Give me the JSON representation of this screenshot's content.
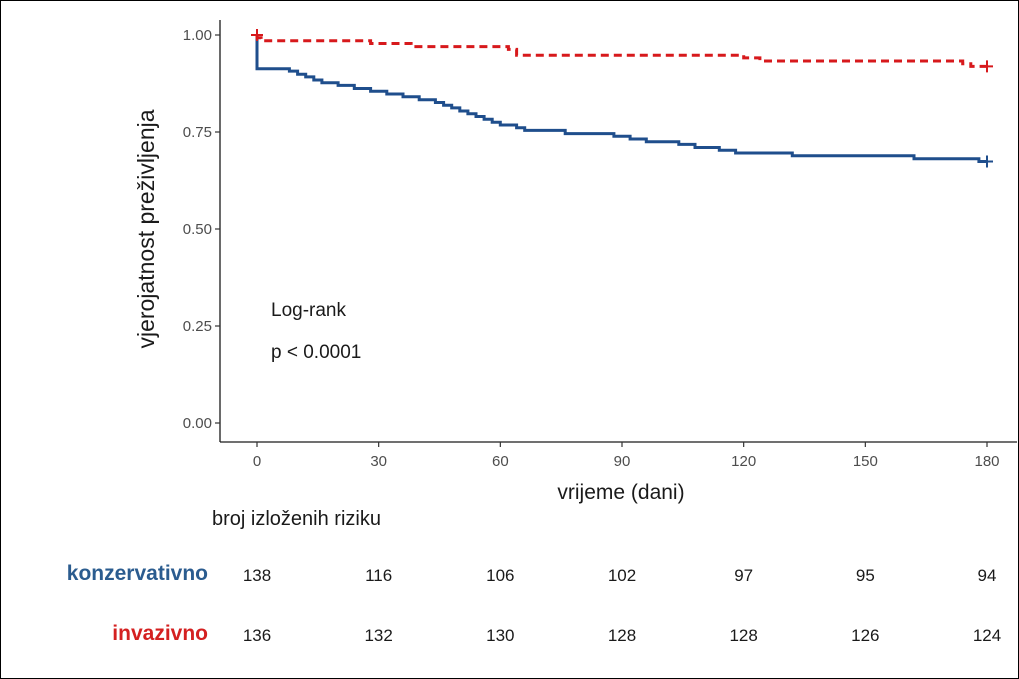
{
  "chart_data": {
    "type": "line",
    "subtype": "kaplan-meier",
    "xlabel": "vrijeme (dani)",
    "ylabel": "vjerojatnost preživljenja",
    "xlim": [
      0,
      180
    ],
    "ylim": [
      0,
      1
    ],
    "x_ticks": [
      "0",
      "30",
      "60",
      "90",
      "120",
      "150",
      "180"
    ],
    "y_ticks": [
      "0.00",
      "0.25",
      "0.50",
      "0.75",
      "1.00"
    ],
    "annotations": [
      "Log-rank",
      "p < 0.0001"
    ],
    "grid": false,
    "series": [
      {
        "name": "konzervativno",
        "color": "#1f4e8c",
        "style": "solid",
        "points": [
          [
            0,
            1.0
          ],
          [
            0,
            0.913
          ],
          [
            8,
            0.913
          ],
          [
            8,
            0.907
          ],
          [
            10,
            0.907
          ],
          [
            10,
            0.899
          ],
          [
            12,
            0.899
          ],
          [
            12,
            0.892
          ],
          [
            14,
            0.892
          ],
          [
            14,
            0.884
          ],
          [
            16,
            0.884
          ],
          [
            16,
            0.877
          ],
          [
            20,
            0.877
          ],
          [
            20,
            0.87
          ],
          [
            24,
            0.87
          ],
          [
            24,
            0.862
          ],
          [
            28,
            0.862
          ],
          [
            28,
            0.855
          ],
          [
            32,
            0.855
          ],
          [
            32,
            0.848
          ],
          [
            36,
            0.848
          ],
          [
            36,
            0.841
          ],
          [
            40,
            0.841
          ],
          [
            40,
            0.833
          ],
          [
            44,
            0.833
          ],
          [
            44,
            0.826
          ],
          [
            46,
            0.826
          ],
          [
            46,
            0.819
          ],
          [
            48,
            0.819
          ],
          [
            48,
            0.812
          ],
          [
            50,
            0.812
          ],
          [
            50,
            0.804
          ],
          [
            52,
            0.804
          ],
          [
            52,
            0.797
          ],
          [
            54,
            0.797
          ],
          [
            54,
            0.79
          ],
          [
            56,
            0.79
          ],
          [
            56,
            0.783
          ],
          [
            58,
            0.783
          ],
          [
            58,
            0.775
          ],
          [
            60,
            0.775
          ],
          [
            60,
            0.768
          ],
          [
            64,
            0.768
          ],
          [
            64,
            0.761
          ],
          [
            66,
            0.761
          ],
          [
            66,
            0.754
          ],
          [
            76,
            0.754
          ],
          [
            76,
            0.746
          ],
          [
            88,
            0.746
          ],
          [
            88,
            0.739
          ],
          [
            92,
            0.739
          ],
          [
            92,
            0.732
          ],
          [
            96,
            0.732
          ],
          [
            96,
            0.725
          ],
          [
            104,
            0.725
          ],
          [
            104,
            0.718
          ],
          [
            108,
            0.718
          ],
          [
            108,
            0.71
          ],
          [
            114,
            0.71
          ],
          [
            114,
            0.703
          ],
          [
            118,
            0.703
          ],
          [
            118,
            0.696
          ],
          [
            132,
            0.696
          ],
          [
            132,
            0.689
          ],
          [
            162,
            0.689
          ],
          [
            162,
            0.681
          ],
          [
            178,
            0.681
          ],
          [
            178,
            0.674
          ],
          [
            180,
            0.674
          ]
        ],
        "censored": [
          [
            180,
            0.674
          ]
        ],
        "at_risk": [
          138,
          116,
          106,
          102,
          97,
          95,
          94
        ]
      },
      {
        "name": "invazivno",
        "color": "#d7191c",
        "style": "dashed",
        "points": [
          [
            0,
            1.0
          ],
          [
            0,
            0.993
          ],
          [
            1,
            0.993
          ],
          [
            1,
            0.985
          ],
          [
            28,
            0.985
          ],
          [
            28,
            0.978
          ],
          [
            38,
            0.978
          ],
          [
            38,
            0.97
          ],
          [
            62,
            0.97
          ],
          [
            62,
            0.963
          ],
          [
            64,
            0.963
          ],
          [
            64,
            0.948
          ],
          [
            120,
            0.948
          ],
          [
            120,
            0.941
          ],
          [
            124,
            0.941
          ],
          [
            124,
            0.933
          ],
          [
            174,
            0.933
          ],
          [
            174,
            0.926
          ],
          [
            176,
            0.926
          ],
          [
            176,
            0.919
          ],
          [
            180,
            0.919
          ]
        ],
        "censored": [
          [
            0,
            1.0
          ],
          [
            180,
            0.919
          ]
        ],
        "at_risk": [
          136,
          132,
          130,
          128,
          128,
          126,
          124
        ]
      }
    ]
  },
  "risk_table": {
    "title": "broj izloženih riziku",
    "groups": [
      "konzervativno",
      "invazivno"
    ]
  }
}
